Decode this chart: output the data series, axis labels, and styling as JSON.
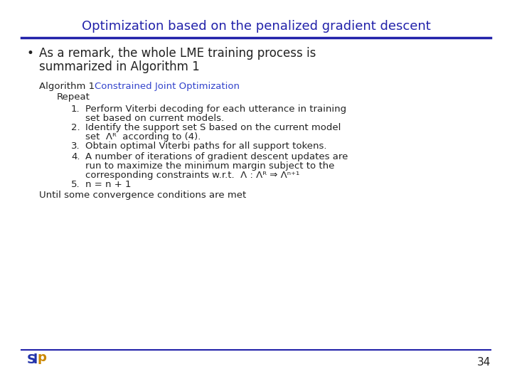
{
  "title": "Optimization based on the penalized gradient descent",
  "title_color": "#2222aa",
  "title_fontsize": 13,
  "slide_bg": "#ffffff",
  "bullet_text_line1": "As a remark, the whole LME training process is",
  "bullet_text_line2": "summarized in Algorithm 1",
  "algo_label": "Algorithm 1 ",
  "algo_title": "Constrained Joint Optimization",
  "algo_title_color": "#3344cc",
  "repeat_text": "Repeat",
  "item1_line1": "Perform Viterbi decoding for each utterance in training",
  "item1_line2": "set based on current models.",
  "item2_line1": "Identify the support set S based on the current model",
  "item2_line2": "set  Λᴿ  according to (4).",
  "item3": "Obtain optimal Viterbi paths for all support tokens.",
  "item4_line1": "A number of iterations of gradient descent updates are",
  "item4_line2": "run to maximize the minimum margin subject to the",
  "item4_line3": "corresponding constraints w.r.t.  Λ : Λᴿ ⇒ Λⁿ⁺¹",
  "item5": "n = n + 1",
  "until_text": "Until some convergence conditions are met",
  "page_number": "34",
  "line_color": "#2222aa",
  "text_color": "#222222",
  "body_fontsize": 10,
  "algo_fontsize": 9.5
}
